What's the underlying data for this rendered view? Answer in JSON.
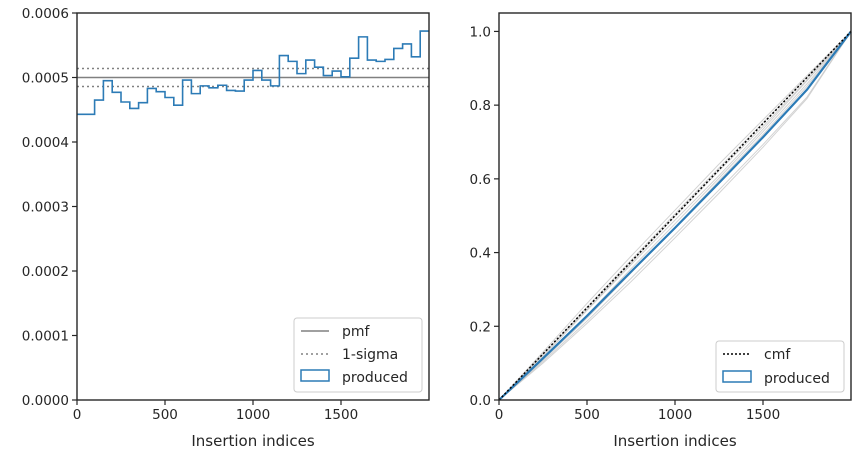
{
  "chart_data": [
    {
      "type": "line",
      "xlabel": "Insertion indices",
      "ylabel": "",
      "xlim": [
        0,
        2000
      ],
      "ylim": [
        0,
        0.0006
      ],
      "xticks": [
        0,
        500,
        1000,
        1500
      ],
      "xtick_labels": [
        "0",
        "500",
        "1000",
        "1500"
      ],
      "yticks": [
        0,
        0.0001,
        0.0002,
        0.0003,
        0.0004,
        0.0005,
        0.0006
      ],
      "ytick_labels": [
        "0.0000",
        "0.0001",
        "0.0002",
        "0.0003",
        "0.0004",
        "0.0005",
        "0.0006"
      ],
      "legend_position": "lower-right",
      "pmf": {
        "name": "pmf",
        "value": 0.0005,
        "color": "#808080"
      },
      "sigma": {
        "name": "1-sigma",
        "values": [
          0.000486,
          0.000514
        ],
        "color": "#808080"
      },
      "produced": {
        "name": "produced",
        "color": "#2c7bb6",
        "bin_edges": [
          0,
          100,
          150,
          200,
          250,
          300,
          350,
          400,
          450,
          500,
          550,
          600,
          650,
          700,
          750,
          800,
          850,
          900,
          950,
          1000,
          1050,
          1100,
          1150,
          1200,
          1250,
          1300,
          1350,
          1400,
          1450,
          1500,
          1550,
          1600,
          1650,
          1700,
          1750,
          1800,
          1850,
          1900,
          1950,
          2000
        ],
        "values": [
          0.000443,
          0.000465,
          0.000495,
          0.000477,
          0.000462,
          0.000452,
          0.000461,
          0.000483,
          0.000478,
          0.000469,
          0.000457,
          0.000496,
          0.000475,
          0.000487,
          0.000484,
          0.000488,
          0.00048,
          0.000479,
          0.000496,
          0.000511,
          0.000496,
          0.000487,
          0.000534,
          0.000525,
          0.000506,
          0.000527,
          0.000516,
          0.000503,
          0.00051,
          0.000501,
          0.00053,
          0.000563,
          0.000527,
          0.000525,
          0.000528,
          0.000545,
          0.000552,
          0.000532,
          0.000572
        ]
      }
    },
    {
      "type": "line",
      "xlabel": "Insertion indices",
      "ylabel": "",
      "xlim": [
        0,
        2000
      ],
      "ylim": [
        0,
        1.05
      ],
      "xticks": [
        0,
        500,
        1000,
        1500
      ],
      "xtick_labels": [
        "0",
        "500",
        "1000",
        "1500"
      ],
      "yticks": [
        0,
        0.2,
        0.4,
        0.6,
        0.8,
        1.0
      ],
      "ytick_labels": [
        "0.0",
        "0.2",
        "0.4",
        "0.6",
        "0.8",
        "1.0"
      ],
      "legend_position": "lower-right",
      "cmf": {
        "name": "cmf",
        "x": [
          0,
          2000
        ],
        "y": [
          0,
          1.0
        ],
        "color": "#000000"
      },
      "produced": {
        "name": "produced",
        "color": "#2c7bb6",
        "x": [
          0,
          250,
          500,
          750,
          1000,
          1250,
          1500,
          1750,
          2000
        ],
        "y": [
          0,
          0.113,
          0.228,
          0.348,
          0.467,
          0.589,
          0.713,
          0.842,
          1.0
        ]
      },
      "samples": {
        "color": "#c8c8c8",
        "x": [
          0,
          250,
          500,
          750,
          1000,
          1250,
          1500,
          1750,
          2000
        ],
        "lines": [
          [
            0,
            0.13,
            0.262,
            0.39,
            0.515,
            0.64,
            0.76,
            0.88,
            1.0
          ],
          [
            0,
            0.122,
            0.252,
            0.379,
            0.505,
            0.63,
            0.752,
            0.875,
            1.0
          ],
          [
            0,
            0.104,
            0.214,
            0.33,
            0.449,
            0.57,
            0.693,
            0.822,
            1.0
          ],
          [
            0,
            0.1,
            0.208,
            0.321,
            0.44,
            0.561,
            0.686,
            0.818,
            1.0
          ],
          [
            0,
            0.118,
            0.243,
            0.367,
            0.488,
            0.609,
            0.735,
            0.866,
            1.0
          ],
          [
            0,
            0.108,
            0.222,
            0.345,
            0.468,
            0.595,
            0.72,
            0.851,
            1.0
          ],
          [
            0,
            0.125,
            0.245,
            0.372,
            0.498,
            0.622,
            0.742,
            0.868,
            1.0
          ],
          [
            0,
            0.112,
            0.23,
            0.356,
            0.478,
            0.602,
            0.728,
            0.858,
            1.0
          ]
        ]
      }
    }
  ]
}
